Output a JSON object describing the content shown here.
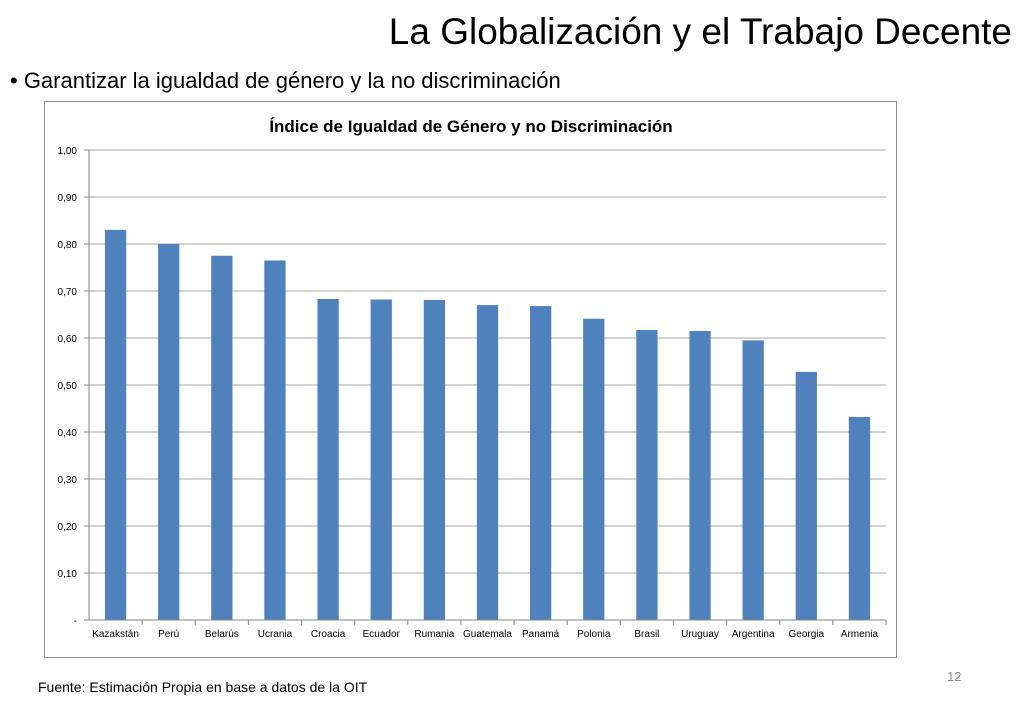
{
  "slide": {
    "title": "La Globalización y el Trabajo Decente",
    "bullet": "• Garantizar la igualdad de género y la no discriminación",
    "source": "Fuente: Estimación Propia en base a datos de la OIT",
    "page_number": "12"
  },
  "colors": {
    "bar": "#4f81bd",
    "grid": "#a6a6a6",
    "axis": "#868686"
  },
  "chart_data": {
    "type": "bar",
    "title": "Índice de Igualdad de Género y no Discriminación",
    "xlabel": "",
    "ylabel": "",
    "categories": [
      "Kazakstán",
      "Perú",
      "Belarús",
      "Ucrania",
      "Croacia",
      "Ecuador",
      "Rumania",
      "Guatemala",
      "Panamá",
      "Polonia",
      "Brasil",
      "Uruguay",
      "Argentina",
      "Georgia",
      "Armenia"
    ],
    "values": [
      0.83,
      0.8,
      0.775,
      0.765,
      0.683,
      0.682,
      0.681,
      0.67,
      0.668,
      0.641,
      0.617,
      0.615,
      0.595,
      0.528,
      0.432
    ],
    "ylim": [
      0,
      1.0
    ],
    "yticks": [
      0,
      0.1,
      0.2,
      0.3,
      0.4,
      0.5,
      0.6,
      0.7,
      0.8,
      0.9,
      1.0
    ],
    "ytick_labels": [
      "-",
      "0,10",
      "0,20",
      "0,30",
      "0,40",
      "0,50",
      "0,60",
      "0,70",
      "0,80",
      "0,90",
      "1,00"
    ],
    "grid": true,
    "legend": "none"
  }
}
